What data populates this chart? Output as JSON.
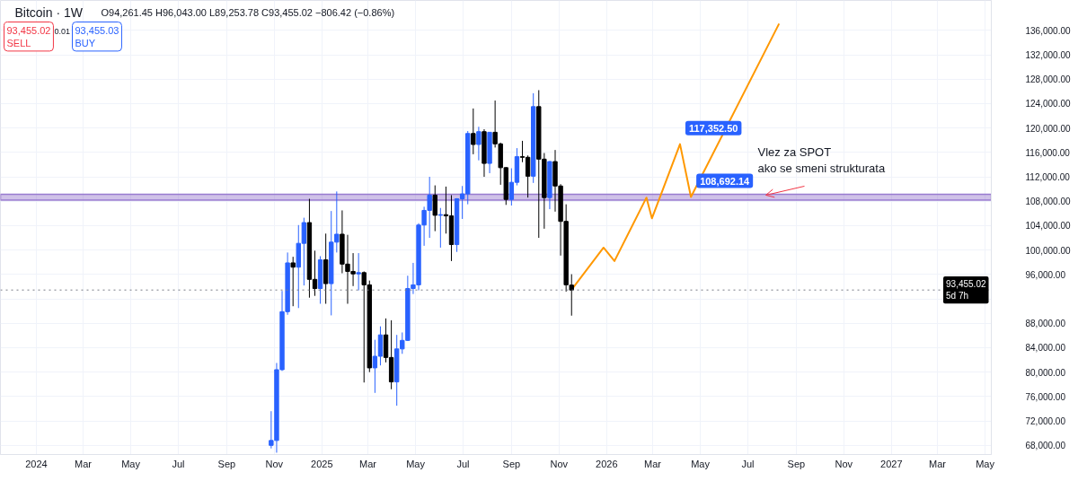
{
  "chart_data": {
    "type": "candlestick",
    "title": "Bitcoin · 1W",
    "subtitle": "O94,261.45 H96,043.00 L89,253.78 C93,455.02 −806.42 (−0.86%)",
    "annotations": [
      "93,455.02\nSELL",
      "0.01",
      "93,455.03\nBUY",
      {
        "text": "Vlez za SPOT\nako se smeni strukturata",
        "x": "2026-07-24",
        "y": 109000
      }
    ],
    "xlim": [
      "2023-11-16",
      "2027-05-09"
    ],
    "ylim": [
      66500,
      140900
    ],
    "xticks": [
      {
        "value": "2024-01-01",
        "label": "2024"
      },
      {
        "value": "2024-03-01",
        "label": "Mar"
      },
      {
        "value": "2024-05-01",
        "label": "May"
      },
      {
        "value": "2024-07-01",
        "label": "Jul"
      },
      {
        "value": "2024-09-01",
        "label": "Sep"
      },
      {
        "value": "2024-11-01",
        "label": "Nov"
      },
      {
        "value": "2025-01-01",
        "label": "2025"
      },
      {
        "value": "2025-03-01",
        "label": "Mar"
      },
      {
        "value": "2025-05-01",
        "label": "May"
      },
      {
        "value": "2025-07-01",
        "label": "Jul"
      },
      {
        "value": "2025-09-01",
        "label": "Sep"
      },
      {
        "value": "2025-11-01",
        "label": "Nov"
      },
      {
        "value": "2026-01-01",
        "label": "2026"
      },
      {
        "value": "2026-03-01",
        "label": "Mar"
      },
      {
        "value": "2026-05-01",
        "label": "May"
      },
      {
        "value": "2026-07-01",
        "label": "Jul"
      },
      {
        "value": "2026-09-01",
        "label": "Sep"
      },
      {
        "value": "2026-11-01",
        "label": "Nov"
      },
      {
        "value": "2027-01-01",
        "label": "2027"
      },
      {
        "value": "2027-03-01",
        "label": "Mar"
      },
      {
        "value": "2027-05-01",
        "label": "May"
      }
    ],
    "yticks": [
      {
        "value": 68000,
        "label": "68,000.00"
      },
      {
        "value": 72000,
        "label": "72,000.00"
      },
      {
        "value": 76000,
        "label": "76,000.00"
      },
      {
        "value": 80000,
        "label": "80,000.00"
      },
      {
        "value": 84000,
        "label": "84,000.00"
      },
      {
        "value": 88000,
        "label": "88,000.00"
      },
      {
        "value": 92000,
        "label": null
      },
      {
        "value": 96000,
        "label": "96,000.00"
      },
      {
        "value": 100000,
        "label": "100,000.00"
      },
      {
        "value": 104000,
        "label": "104,000.00"
      },
      {
        "value": 108000,
        "label": "108,000.00"
      },
      {
        "value": 112000,
        "label": "112,000.00"
      },
      {
        "value": 116000,
        "label": "116,000.00"
      },
      {
        "value": 120000,
        "label": "120,000.00"
      },
      {
        "value": 124000,
        "label": "124,000.00"
      },
      {
        "value": 128000,
        "label": "128,000.00"
      },
      {
        "value": 132000,
        "label": "132,000.00"
      },
      {
        "value": 136000,
        "label": "136,000.00"
      }
    ],
    "grid": true,
    "ref_lines": [
      {
        "axis": "y",
        "value": 93455.02,
        "label": "93,455.02\n5d 7h",
        "color": "#787b86",
        "line_style": "dotted"
      }
    ],
    "bands": [
      {
        "axis": "y",
        "from": 108200,
        "to": 109150,
        "color": "#9575cd"
      }
    ],
    "series": [
      {
        "x": [
          "2024-10-28",
          "2024-11-04",
          "2024-11-11",
          "2024-11-18",
          "2024-11-25",
          "2024-12-02",
          "2024-12-09",
          "2024-12-16",
          "2024-12-23",
          "2024-12-30",
          "2025-01-06",
          "2025-01-13",
          "2025-01-20",
          "2025-01-27",
          "2025-02-03",
          "2025-02-10",
          "2025-02-17",
          "2025-02-24",
          "2025-03-03",
          "2025-03-10",
          "2025-03-17",
          "2025-03-24",
          "2025-03-31",
          "2025-04-07",
          "2025-04-14",
          "2025-04-21",
          "2025-04-28",
          "2025-05-05",
          "2025-05-12",
          "2025-05-19",
          "2025-05-26",
          "2025-06-02",
          "2025-06-09",
          "2025-06-16",
          "2025-06-23",
          "2025-06-30",
          "2025-07-07",
          "2025-07-14",
          "2025-07-21",
          "2025-07-28",
          "2025-08-04",
          "2025-08-11",
          "2025-08-18",
          "2025-08-25",
          "2025-09-01",
          "2025-09-08",
          "2025-09-15",
          "2025-09-22",
          "2025-09-29",
          "2025-10-06",
          "2025-10-13",
          "2025-10-20",
          "2025-10-27",
          "2025-11-03",
          "2025-11-10",
          "2025-11-17"
        ],
        "ohlc": [
          [
            68000,
            73600,
            67500,
            68800
          ],
          [
            68800,
            81500,
            66800,
            80400
          ],
          [
            80400,
            93300,
            80200,
            89900
          ],
          [
            89900,
            99600,
            89400,
            97900
          ],
          [
            97900,
            98900,
            90800,
            97200
          ],
          [
            97200,
            104100,
            90500,
            101100
          ],
          [
            101100,
            105300,
            94200,
            104500
          ],
          [
            104500,
            108400,
            92200,
            95200
          ],
          [
            95200,
            99900,
            92500,
            93700
          ],
          [
            93700,
            99000,
            91200,
            98400
          ],
          [
            98400,
            102700,
            91200,
            94500
          ],
          [
            94500,
            106400,
            89300,
            101300
          ],
          [
            101300,
            109600,
            99600,
            102600
          ],
          [
            102600,
            106500,
            96200,
            97700
          ],
          [
            97700,
            102500,
            91200,
            96500
          ],
          [
            96500,
            99500,
            94100,
            96100
          ],
          [
            96100,
            99500,
            93400,
            96300
          ],
          [
            96300,
            96500,
            78300,
            94300
          ],
          [
            94300,
            95000,
            80000,
            80700
          ],
          [
            80700,
            85300,
            76600,
            82600
          ],
          [
            82600,
            87500,
            81100,
            86100
          ],
          [
            86100,
            88800,
            81600,
            82400
          ],
          [
            82400,
            88500,
            77200,
            78400
          ],
          [
            78400,
            86100,
            74500,
            83800
          ],
          [
            83800,
            86500,
            83000,
            85200
          ],
          [
            85200,
            95800,
            85100,
            93700
          ],
          [
            93700,
            97900,
            92800,
            94300
          ],
          [
            94300,
            104400,
            93400,
            104100
          ],
          [
            104100,
            107100,
            100700,
            106500
          ],
          [
            106500,
            112000,
            102000,
            109000
          ],
          [
            109000,
            110600,
            103100,
            105700
          ],
          [
            105700,
            106900,
            100400,
            105800
          ],
          [
            105800,
            110400,
            102700,
            105600
          ],
          [
            105600,
            109000,
            98200,
            100900
          ],
          [
            100900,
            108500,
            99700,
            108400
          ],
          [
            108400,
            110500,
            105100,
            109200
          ],
          [
            109200,
            119500,
            107500,
            119100
          ],
          [
            119100,
            123200,
            115700,
            117300
          ],
          [
            117300,
            120200,
            114700,
            119400
          ],
          [
            119400,
            119800,
            112000,
            114200
          ],
          [
            114200,
            119300,
            112600,
            119300
          ],
          [
            119300,
            124500,
            116800,
            117400
          ],
          [
            117400,
            117600,
            110700,
            113500
          ],
          [
            113500,
            113600,
            107400,
            108300
          ],
          [
            108300,
            113400,
            107300,
            111100
          ],
          [
            111100,
            116700,
            110600,
            115300
          ],
          [
            115300,
            117900,
            114400,
            115200
          ],
          [
            115200,
            115500,
            108600,
            112100
          ],
          [
            112100,
            125700,
            111000,
            123500
          ],
          [
            123500,
            126200,
            102000,
            114900
          ],
          [
            114900,
            115900,
            103500,
            108600
          ],
          [
            108600,
            114600,
            106700,
            114500
          ],
          [
            114500,
            116400,
            106300,
            110500
          ],
          [
            110500,
            110800,
            99100,
            104700
          ],
          [
            104700,
            107500,
            93200,
            94300
          ],
          [
            94261.45,
            96043.0,
            89253.78,
            93455.02
          ]
        ],
        "colors": [
          "#2962ff",
          "#2962ff",
          "#2962ff",
          "#2962ff",
          "#000000",
          "#2962ff",
          "#2962ff",
          "#000000",
          "#000000",
          "#2962ff",
          "#000000",
          "#2962ff",
          "#2962ff",
          "#000000",
          "#000000",
          "#000000",
          "#2962ff",
          "#000000",
          "#000000",
          "#2962ff",
          "#2962ff",
          "#000000",
          "#000000",
          "#2962ff",
          "#2962ff",
          "#2962ff",
          "#2962ff",
          "#2962ff",
          "#2962ff",
          "#2962ff",
          "#000000",
          "#2962ff",
          "#000000",
          "#000000",
          "#2962ff",
          "#2962ff",
          "#2962ff",
          "#000000",
          "#2962ff",
          "#000000",
          "#2962ff",
          "#000000",
          "#000000",
          "#000000",
          "#2962ff",
          "#2962ff",
          "#000000",
          "#000000",
          "#2962ff",
          "#000000",
          "#000000",
          "#2962ff",
          "#000000",
          "#000000",
          "#000000",
          "#000000"
        ]
      },
      {
        "type": "line",
        "color": "#ff9800",
        "x": [
          "2025-11-17",
          "2025-12-28",
          "2026-01-11",
          "2026-02-21",
          "2026-02-28",
          "2026-04-05",
          "2026-04-19",
          "2026-08-10"
        ],
        "values": [
          93500,
          100400,
          98200,
          108600,
          105200,
          117352.5,
          108692.14,
          137100
        ],
        "value_labels": [
          null,
          null,
          null,
          null,
          null,
          "117,352.50",
          "108,692.14",
          null
        ]
      }
    ]
  }
}
